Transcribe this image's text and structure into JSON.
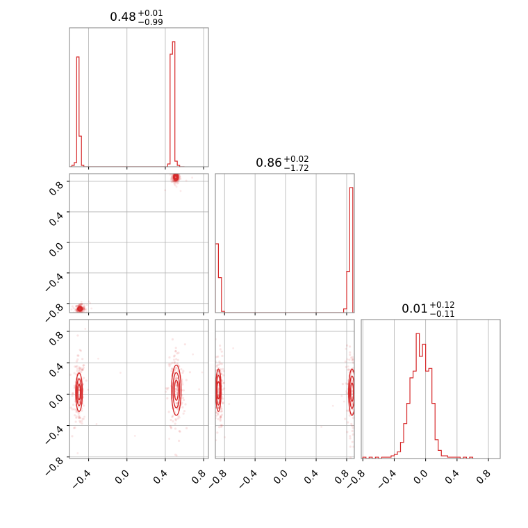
{
  "chart_data": {
    "type": "corner",
    "color": "#d62728",
    "params": [
      {
        "title_value": "0.48",
        "title_plus": "+0.01",
        "title_minus": "−0.99",
        "range": [
          -0.6,
          0.85
        ]
      },
      {
        "title_value": "0.86",
        "title_plus": "+0.02",
        "title_minus": "−1.72",
        "range": [
          -0.92,
          0.9
        ]
      },
      {
        "title_value": "0.01",
        "title_plus": "+0.12",
        "title_minus": "−0.11",
        "range": [
          -0.82,
          0.95
        ]
      }
    ],
    "ticks": [
      -0.8,
      -0.4,
      0.0,
      0.4,
      0.8
    ],
    "tick_labels": [
      "−0.8",
      "−0.4",
      "0.0",
      "0.4",
      "0.8"
    ],
    "grid": true,
    "histograms": [
      {
        "param": 0,
        "edges": [
          -0.625,
          -0.6,
          -0.575,
          -0.55,
          -0.525,
          -0.5,
          -0.475,
          -0.45,
          -0.425,
          -0.4,
          -0.375,
          -0.35,
          -0.325,
          -0.3,
          -0.275,
          -0.25,
          -0.225,
          -0.2,
          -0.175,
          -0.15,
          -0.125,
          -0.1,
          -0.075,
          -0.05,
          -0.025,
          0.0,
          0.025,
          0.05,
          0.075,
          0.1,
          0.125,
          0.15,
          0.175,
          0.2,
          0.225,
          0.25,
          0.275,
          0.3,
          0.325,
          0.35,
          0.375,
          0.4,
          0.425,
          0.45,
          0.475,
          0.5,
          0.525,
          0.55,
          0.575,
          0.6
        ],
        "counts": [
          0,
          0,
          0.01,
          0.03,
          0.79,
          0.22,
          0.01,
          0,
          0,
          0,
          0,
          0,
          0,
          0,
          0,
          0,
          0,
          0,
          0,
          0,
          0,
          0,
          0,
          0,
          0,
          0,
          0,
          0,
          0,
          0,
          0,
          0,
          0,
          0,
          0,
          0,
          0,
          0,
          0,
          0,
          0,
          0,
          0.02,
          0.81,
          0.9,
          0.04,
          0.01,
          0,
          0
        ]
      },
      {
        "param": 1,
        "edges": [
          -0.92,
          -0.88,
          -0.84,
          -0.8,
          -0.76,
          -0.72,
          -0.68,
          -0.64,
          -0.6,
          -0.56,
          -0.52,
          -0.48,
          -0.44,
          -0.4,
          -0.36,
          -0.32,
          -0.28,
          -0.24,
          -0.2,
          -0.16,
          -0.12,
          -0.08,
          -0.04,
          0.0,
          0.04,
          0.08,
          0.12,
          0.16,
          0.2,
          0.24,
          0.28,
          0.32,
          0.36,
          0.4,
          0.44,
          0.48,
          0.52,
          0.56,
          0.6,
          0.64,
          0.68,
          0.72,
          0.76,
          0.8,
          0.84,
          0.88,
          0.92
        ],
        "counts": [
          0.55,
          0.28,
          0.01,
          0,
          0,
          0,
          0,
          0,
          0,
          0,
          0,
          0,
          0,
          0,
          0,
          0,
          0,
          0,
          0,
          0,
          0,
          0,
          0,
          0,
          0,
          0,
          0,
          0,
          0,
          0,
          0,
          0,
          0,
          0,
          0,
          0,
          0,
          0,
          0,
          0,
          0,
          0,
          0.03,
          0.33,
          1.0,
          0
        ]
      },
      {
        "param": 2,
        "edges": [
          -0.8,
          -0.76,
          -0.72,
          -0.68,
          -0.64,
          -0.6,
          -0.56,
          -0.52,
          -0.48,
          -0.44,
          -0.4,
          -0.36,
          -0.32,
          -0.28,
          -0.24,
          -0.2,
          -0.16,
          -0.12,
          -0.08,
          -0.04,
          0.0,
          0.04,
          0.08,
          0.12,
          0.16,
          0.2,
          0.24,
          0.28,
          0.32,
          0.36,
          0.4,
          0.44,
          0.48,
          0.52,
          0.56,
          0.6
        ],
        "counts": [
          0.01,
          0,
          0.01,
          0,
          0.01,
          0,
          0.01,
          0.01,
          0.01,
          0.02,
          0.03,
          0.05,
          0.12,
          0.26,
          0.41,
          0.6,
          0.65,
          0.93,
          0.76,
          0.85,
          0.65,
          0.67,
          0.41,
          0.14,
          0.06,
          0.02,
          0.02,
          0.01,
          0.01,
          0.01,
          0.01,
          0,
          0.01,
          0,
          0.01
        ]
      }
    ],
    "scatter_panels": [
      {
        "x_param": 0,
        "y_param": 1,
        "clusters": [
          {
            "x": [
              0.5,
              0.52
            ],
            "y": [
              0.83,
              0.88
            ],
            "density": "high"
          },
          {
            "x": [
              -0.48,
              -0.5
            ],
            "y": [
              -0.86,
              -0.88
            ],
            "density": "high"
          }
        ]
      },
      {
        "x_param": 0,
        "y_param": 2,
        "clusters": [
          {
            "x": [
              -0.48,
              -0.52
            ],
            "y": [
              -0.2,
              0.25
            ],
            "density": "high"
          },
          {
            "x": [
              0.48,
              0.55
            ],
            "y": [
              -0.25,
              0.35
            ],
            "density": "high"
          }
        ]
      },
      {
        "x_param": 1,
        "y_param": 2,
        "clusters": [
          {
            "x": [
              -0.86,
              -0.9
            ],
            "y": [
              -0.2,
              0.3
            ],
            "density": "high"
          },
          {
            "x": [
              0.84,
              0.9
            ],
            "y": [
              -0.25,
              0.3
            ],
            "density": "high"
          }
        ]
      }
    ]
  }
}
